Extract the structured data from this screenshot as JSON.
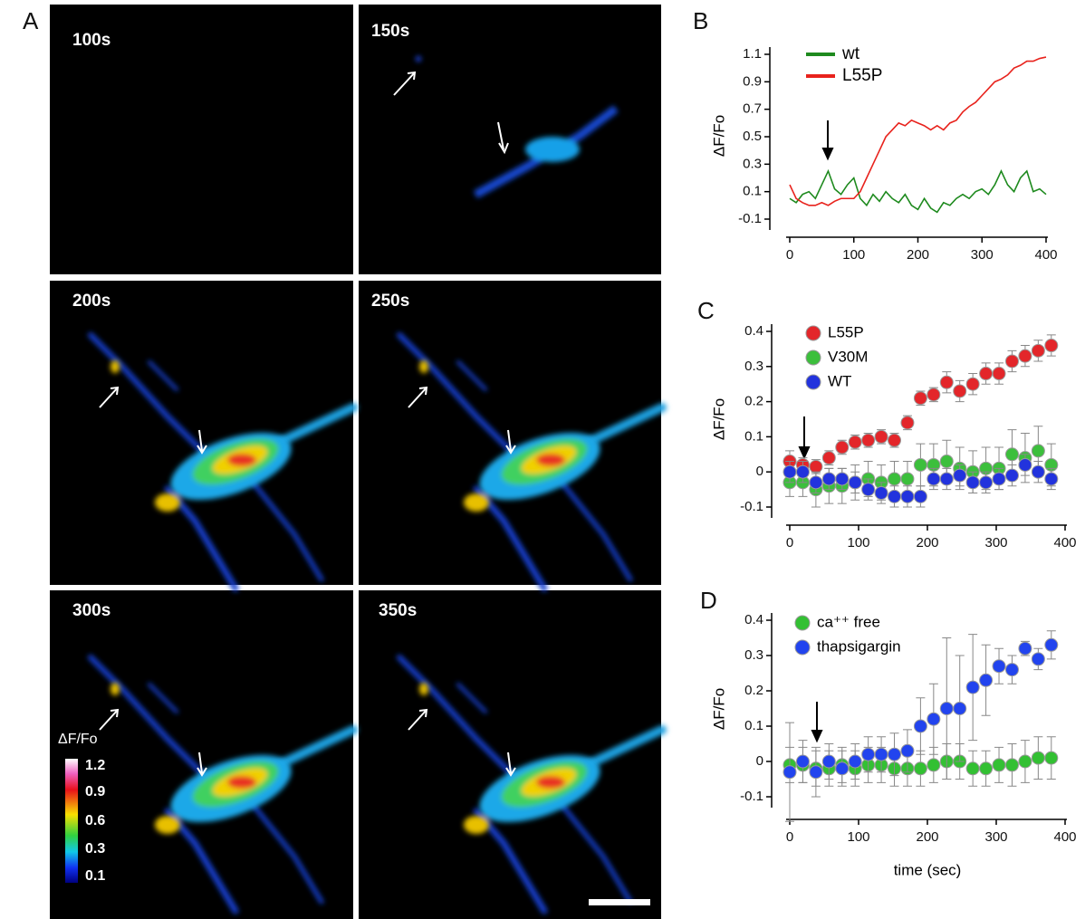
{
  "panel_a": {
    "label": "A",
    "frames": [
      "100s",
      "150s",
      "200s",
      "250s",
      "300s",
      "350s"
    ],
    "colorbar": {
      "title": "ΔF/Fo",
      "ticks": [
        "1.2",
        "0.9",
        "0.6",
        "0.3",
        "0.1"
      ]
    }
  },
  "chart_data": [
    {
      "type": "line",
      "label": "B",
      "y_label": "ΔF/Fo",
      "x": [
        0,
        10,
        20,
        30,
        40,
        50,
        60,
        70,
        80,
        90,
        100,
        110,
        120,
        130,
        140,
        150,
        160,
        170,
        180,
        190,
        200,
        210,
        220,
        230,
        240,
        250,
        260,
        270,
        280,
        290,
        300,
        310,
        320,
        330,
        340,
        350,
        360,
        370,
        380,
        390,
        400
      ],
      "series": [
        {
          "name": "wt",
          "color": "#1e8a1e",
          "values": [
            0.05,
            0.02,
            0.08,
            0.1,
            0.05,
            0.15,
            0.25,
            0.12,
            0.08,
            0.15,
            0.2,
            0.05,
            0.0,
            0.08,
            0.03,
            0.1,
            0.05,
            0.02,
            0.08,
            0.0,
            -0.03,
            0.05,
            -0.02,
            -0.05,
            0.02,
            0.0,
            0.05,
            0.08,
            0.05,
            0.1,
            0.12,
            0.08,
            0.15,
            0.25,
            0.15,
            0.1,
            0.2,
            0.25,
            0.1,
            0.12,
            0.08
          ]
        },
        {
          "name": "L55P",
          "color": "#e8221c",
          "values": [
            0.15,
            0.05,
            0.02,
            0.0,
            0.0,
            0.02,
            0.0,
            0.03,
            0.05,
            0.05,
            0.05,
            0.1,
            0.2,
            0.3,
            0.4,
            0.5,
            0.55,
            0.6,
            0.58,
            0.62,
            0.6,
            0.58,
            0.55,
            0.58,
            0.55,
            0.6,
            0.62,
            0.68,
            0.72,
            0.75,
            0.8,
            0.85,
            0.9,
            0.92,
            0.95,
            1.0,
            1.02,
            1.05,
            1.05,
            1.07,
            1.08
          ]
        }
      ],
      "xlim": [
        0,
        400
      ],
      "xticks": [
        0,
        100,
        200,
        300,
        400
      ],
      "ylim": [
        -0.1,
        1.1
      ],
      "yticks": [
        1.1,
        0.9,
        0.7,
        0.5,
        0.3,
        0.1,
        -0.1
      ]
    },
    {
      "type": "scatter",
      "label": "C",
      "y_label": "ΔF/Fo",
      "x": [
        0,
        19,
        38,
        57,
        76,
        95,
        114,
        133,
        152,
        171,
        190,
        209,
        228,
        247,
        266,
        285,
        304,
        323,
        342,
        361,
        380
      ],
      "series": [
        {
          "name": "L55P",
          "color": "#e3262a",
          "values": [
            0.03,
            0.02,
            0.015,
            0.04,
            0.07,
            0.085,
            0.09,
            0.1,
            0.09,
            0.14,
            0.21,
            0.22,
            0.255,
            0.23,
            0.25,
            0.28,
            0.28,
            0.315,
            0.33,
            0.345,
            0.36
          ],
          "errors": [
            0.03,
            0.02,
            0.02,
            0.02,
            0.02,
            0.02,
            0.02,
            0.02,
            0.02,
            0.02,
            0.02,
            0.02,
            0.03,
            0.03,
            0.03,
            0.03,
            0.03,
            0.03,
            0.03,
            0.03,
            0.03
          ]
        },
        {
          "name": "V30M",
          "color": "#3cbf3c",
          "values": [
            -0.03,
            -0.03,
            -0.05,
            -0.04,
            -0.04,
            -0.03,
            -0.02,
            -0.03,
            -0.02,
            -0.02,
            0.02,
            0.02,
            0.03,
            0.01,
            0.0,
            0.01,
            0.01,
            0.05,
            0.04,
            0.06,
            0.02
          ],
          "errors": [
            0.04,
            0.04,
            0.05,
            0.05,
            0.05,
            0.05,
            0.05,
            0.05,
            0.05,
            0.05,
            0.06,
            0.06,
            0.06,
            0.06,
            0.06,
            0.06,
            0.06,
            0.07,
            0.07,
            0.07,
            0.06
          ]
        },
        {
          "name": "WT",
          "color": "#2233dd",
          "values": [
            0.0,
            0.0,
            -0.03,
            -0.02,
            -0.02,
            -0.03,
            -0.05,
            -0.06,
            -0.07,
            -0.07,
            -0.07,
            -0.02,
            -0.02,
            -0.01,
            -0.03,
            -0.03,
            -0.02,
            -0.01,
            0.02,
            0.0,
            -0.02
          ],
          "errors": [
            0.03,
            0.03,
            0.03,
            0.03,
            0.03,
            0.03,
            0.03,
            0.03,
            0.03,
            0.03,
            0.03,
            0.03,
            0.03,
            0.03,
            0.03,
            0.03,
            0.03,
            0.03,
            0.03,
            0.03,
            0.03
          ]
        }
      ],
      "xlim": [
        0,
        400
      ],
      "xticks": [
        0,
        100,
        200,
        300,
        400
      ],
      "ylim": [
        -0.1,
        0.4
      ],
      "yticks": [
        0.4,
        0.3,
        0.2,
        0.1,
        0.0,
        -0.1
      ]
    },
    {
      "type": "scatter",
      "label": "D",
      "y_label": "ΔF/Fo",
      "x_label": "time (sec)",
      "x": [
        0,
        19,
        38,
        57,
        76,
        95,
        114,
        133,
        152,
        171,
        190,
        209,
        228,
        247,
        266,
        285,
        304,
        323,
        342,
        361,
        380
      ],
      "series": [
        {
          "name": "ca⁺⁺ free",
          "color": "#33c033",
          "values": [
            -0.01,
            -0.01,
            -0.02,
            -0.02,
            -0.01,
            -0.02,
            -0.01,
            -0.01,
            -0.02,
            -0.02,
            -0.02,
            -0.01,
            0.0,
            0.0,
            -0.02,
            -0.02,
            -0.01,
            -0.01,
            0.0,
            0.01,
            0.01
          ],
          "errors": [
            0.05,
            0.05,
            0.05,
            0.05,
            0.05,
            0.05,
            0.05,
            0.05,
            0.05,
            0.05,
            0.05,
            0.05,
            0.05,
            0.05,
            0.05,
            0.05,
            0.05,
            0.06,
            0.06,
            0.06,
            0.06
          ]
        },
        {
          "name": "thapsigargin",
          "color": "#2244ee",
          "values": [
            -0.03,
            0.0,
            -0.03,
            0.0,
            -0.02,
            0.0,
            0.02,
            0.02,
            0.02,
            0.03,
            0.1,
            0.12,
            0.15,
            0.15,
            0.21,
            0.23,
            0.27,
            0.26,
            0.32,
            0.29,
            0.33
          ],
          "errors": [
            0.14,
            0.06,
            0.07,
            0.05,
            0.05,
            0.05,
            0.05,
            0.05,
            0.06,
            0.06,
            0.08,
            0.1,
            0.2,
            0.15,
            0.15,
            0.1,
            0.05,
            0.04,
            0.02,
            0.03,
            0.04
          ]
        }
      ],
      "xlim": [
        0,
        400
      ],
      "xticks": [
        0,
        100,
        200,
        300,
        400
      ],
      "ylim": [
        -0.1,
        0.4
      ],
      "yticks": [
        0.4,
        0.3,
        0.2,
        0.1,
        0.0,
        -0.1
      ]
    }
  ]
}
